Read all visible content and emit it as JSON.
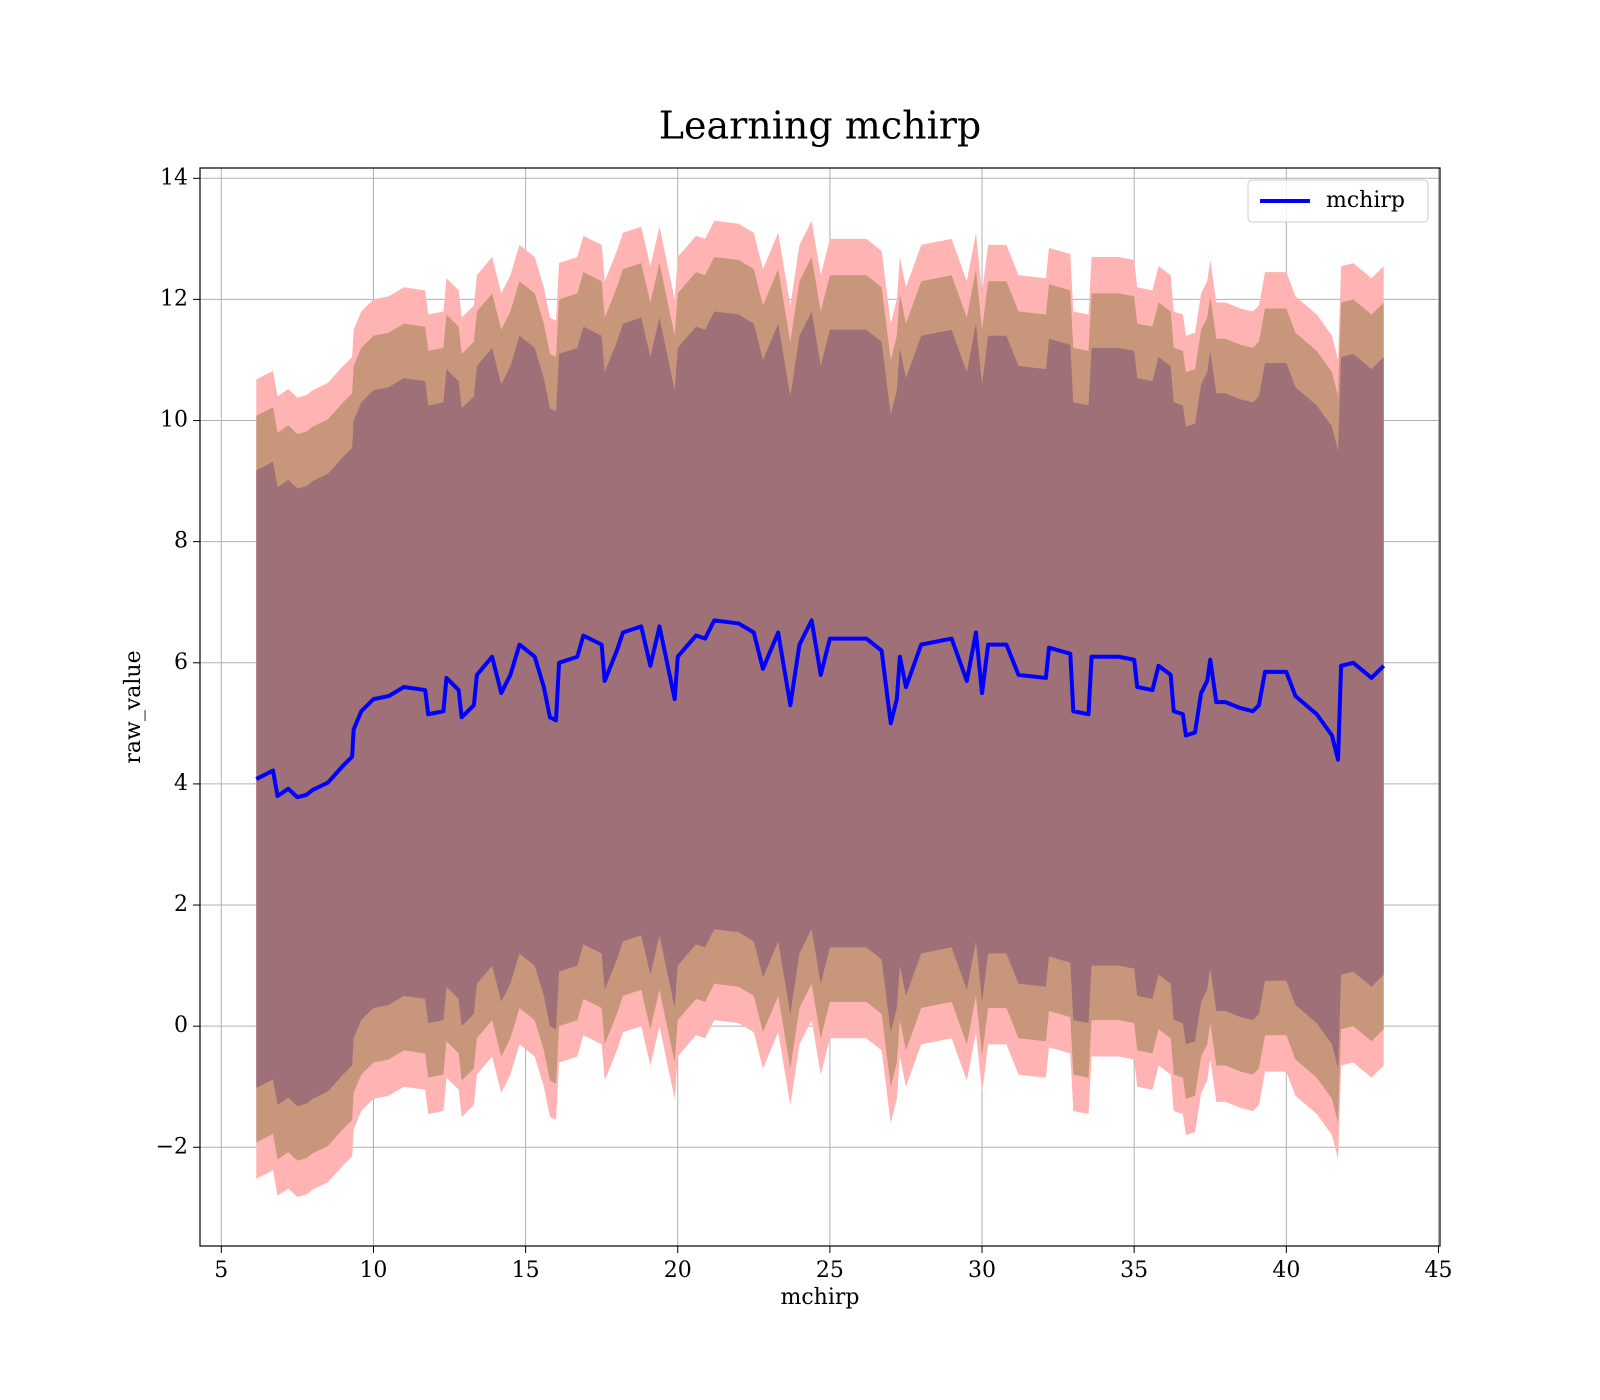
{
  "chart_data": {
    "type": "line",
    "title": "Learning mchirp",
    "x_label": "mchirp",
    "y_label": "raw_value",
    "xlim": [
      4.3,
      45.05
    ],
    "ylim": [
      -3.63,
      14.17
    ],
    "xticks": [
      5,
      10,
      15,
      20,
      25,
      30,
      35,
      40,
      45
    ],
    "yticks": [
      {
        "value": -2,
        "label": "−2"
      },
      0,
      2,
      4,
      6,
      8,
      10,
      12,
      14
    ],
    "grid": true,
    "legend": "upper right",
    "x": [
      6.15,
      6.7,
      6.85,
      7.2,
      7.5,
      7.8,
      8.0,
      8.5,
      9.0,
      9.3,
      9.35,
      9.6,
      10.0,
      10.5,
      11.0,
      11.7,
      11.8,
      12.3,
      12.4,
      12.8,
      12.9,
      13.3,
      13.4,
      13.9,
      14.2,
      14.5,
      14.8,
      15.3,
      15.6,
      15.8,
      16.0,
      16.1,
      16.7,
      16.9,
      17.5,
      17.6,
      18.0,
      18.2,
      18.8,
      19.1,
      19.4,
      19.9,
      20.0,
      20.6,
      20.9,
      21.2,
      22.0,
      22.5,
      22.8,
      23.3,
      23.7,
      24.0,
      24.4,
      24.7,
      25.0,
      25.6,
      26.2,
      26.7,
      27.0,
      27.2,
      27.3,
      27.5,
      28.0,
      29.0,
      29.5,
      29.8,
      30.0,
      30.2,
      30.8,
      31.2,
      32.1,
      32.2,
      32.9,
      33.0,
      33.5,
      33.6,
      34.5,
      35.0,
      35.1,
      35.6,
      35.8,
      36.2,
      36.3,
      36.6,
      36.7,
      37.0,
      37.2,
      37.4,
      37.5,
      37.7,
      38.0,
      38.5,
      38.9,
      39.1,
      39.3,
      40.0,
      40.3,
      41.0,
      41.5,
      41.7,
      41.8,
      42.2,
      42.8,
      43.2
    ],
    "bands": [
      {
        "color": "#ffb3b3",
        "upper": [
          10.68,
          10.82,
          10.4,
          10.52,
          10.38,
          10.42,
          10.5,
          10.62,
          10.9,
          11.05,
          11.5,
          11.8,
          12.0,
          12.05,
          12.2,
          12.15,
          11.75,
          11.8,
          12.35,
          12.15,
          11.7,
          11.9,
          12.4,
          12.7,
          12.1,
          12.4,
          12.9,
          12.7,
          12.2,
          11.7,
          11.65,
          12.6,
          12.7,
          13.05,
          12.9,
          12.3,
          12.8,
          13.1,
          13.2,
          12.55,
          13.2,
          12.0,
          12.7,
          13.05,
          13.0,
          13.3,
          13.25,
          13.1,
          12.5,
          13.1,
          11.9,
          12.9,
          13.3,
          12.4,
          13.0,
          13.0,
          13.0,
          12.8,
          11.6,
          12.0,
          12.7,
          12.2,
          12.9,
          13.0,
          12.3,
          13.1,
          12.1,
          12.9,
          12.9,
          12.4,
          12.35,
          12.85,
          12.75,
          11.8,
          11.75,
          12.7,
          12.7,
          12.65,
          12.2,
          12.15,
          12.55,
          12.4,
          11.8,
          11.75,
          11.4,
          11.45,
          12.1,
          12.3,
          12.65,
          11.95,
          11.95,
          11.85,
          11.8,
          11.9,
          12.45,
          12.45,
          12.05,
          11.75,
          11.4,
          11.0,
          12.55,
          12.6,
          12.35,
          12.55
        ],
        "lower": [
          -2.52,
          -2.38,
          -2.8,
          -2.68,
          -2.82,
          -2.78,
          -2.7,
          -2.58,
          -2.3,
          -2.15,
          -1.7,
          -1.4,
          -1.2,
          -1.15,
          -1.0,
          -1.05,
          -1.45,
          -1.4,
          -0.85,
          -1.05,
          -1.5,
          -1.3,
          -0.8,
          -0.5,
          -1.1,
          -0.8,
          -0.3,
          -0.5,
          -1.0,
          -1.5,
          -1.55,
          -0.6,
          -0.5,
          -0.15,
          -0.3,
          -0.9,
          -0.4,
          -0.1,
          0.0,
          -0.65,
          0.0,
          -1.2,
          -0.5,
          -0.15,
          -0.2,
          0.1,
          0.05,
          -0.1,
          -0.7,
          -0.1,
          -1.3,
          -0.3,
          0.1,
          -0.8,
          -0.2,
          -0.2,
          -0.2,
          -0.4,
          -1.6,
          -1.2,
          -0.5,
          -1.0,
          -0.3,
          -0.2,
          -0.9,
          -0.1,
          -1.1,
          -0.3,
          -0.3,
          -0.8,
          -0.85,
          -0.35,
          -0.45,
          -1.4,
          -1.45,
          -0.5,
          -0.5,
          -0.55,
          -1.0,
          -1.05,
          -0.65,
          -0.8,
          -1.4,
          -1.45,
          -1.8,
          -1.75,
          -1.1,
          -0.9,
          -0.55,
          -1.25,
          -1.25,
          -1.35,
          -1.4,
          -1.3,
          -0.75,
          -0.75,
          -1.15,
          -1.45,
          -1.8,
          -2.2,
          -0.65,
          -0.6,
          -0.85,
          -0.65
        ]
      },
      {
        "color": "#c8977b",
        "upper": [
          10.08,
          10.22,
          9.8,
          9.92,
          9.78,
          9.82,
          9.9,
          10.02,
          10.3,
          10.45,
          10.9,
          11.2,
          11.4,
          11.45,
          11.6,
          11.55,
          11.15,
          11.2,
          11.75,
          11.55,
          11.1,
          11.3,
          11.8,
          12.1,
          11.5,
          11.8,
          12.3,
          12.1,
          11.6,
          11.1,
          11.05,
          12.0,
          12.1,
          12.45,
          12.3,
          11.7,
          12.2,
          12.5,
          12.6,
          11.95,
          12.6,
          11.4,
          12.1,
          12.45,
          12.4,
          12.7,
          12.65,
          12.5,
          11.9,
          12.5,
          11.3,
          12.3,
          12.7,
          11.8,
          12.4,
          12.4,
          12.4,
          12.2,
          11.0,
          11.4,
          12.1,
          11.6,
          12.3,
          12.4,
          11.7,
          12.5,
          11.5,
          12.3,
          12.3,
          11.8,
          11.75,
          12.25,
          12.15,
          11.2,
          11.15,
          12.1,
          12.1,
          12.05,
          11.6,
          11.55,
          11.95,
          11.8,
          11.2,
          11.15,
          10.8,
          10.85,
          11.5,
          11.7,
          12.05,
          11.35,
          11.35,
          11.25,
          11.2,
          11.3,
          11.85,
          11.85,
          11.45,
          11.15,
          10.8,
          10.4,
          11.95,
          12.0,
          11.75,
          11.95
        ],
        "lower": [
          -1.92,
          -1.78,
          -2.2,
          -2.08,
          -2.22,
          -2.18,
          -2.1,
          -1.98,
          -1.7,
          -1.55,
          -1.1,
          -0.8,
          -0.6,
          -0.55,
          -0.4,
          -0.45,
          -0.85,
          -0.8,
          -0.25,
          -0.45,
          -0.9,
          -0.7,
          -0.2,
          0.1,
          -0.5,
          -0.2,
          0.3,
          0.1,
          -0.4,
          -0.9,
          -0.95,
          0.0,
          0.1,
          0.45,
          0.3,
          -0.3,
          0.2,
          0.5,
          0.6,
          -0.05,
          0.6,
          -0.6,
          0.1,
          0.45,
          0.4,
          0.7,
          0.65,
          0.5,
          -0.1,
          0.5,
          -0.7,
          0.3,
          0.7,
          -0.2,
          0.4,
          0.4,
          0.4,
          0.2,
          -1.0,
          -0.6,
          0.1,
          -0.4,
          0.3,
          0.4,
          -0.3,
          0.5,
          -0.5,
          0.3,
          0.3,
          -0.2,
          -0.25,
          0.25,
          0.15,
          -0.8,
          -0.85,
          0.1,
          0.1,
          0.05,
          -0.4,
          -0.45,
          -0.05,
          -0.2,
          -0.8,
          -0.85,
          -1.2,
          -1.15,
          -0.5,
          -0.3,
          0.05,
          -0.65,
          -0.65,
          -0.75,
          -0.8,
          -0.7,
          -0.15,
          -0.15,
          -0.55,
          -0.85,
          -1.2,
          -1.6,
          -0.05,
          0.0,
          -0.25,
          -0.05
        ]
      },
      {
        "color": "#a07078",
        "upper": [
          9.18,
          9.32,
          8.9,
          9.02,
          8.88,
          8.92,
          9.0,
          9.12,
          9.4,
          9.55,
          10.0,
          10.3,
          10.5,
          10.55,
          10.7,
          10.65,
          10.25,
          10.3,
          10.85,
          10.65,
          10.2,
          10.4,
          10.9,
          11.2,
          10.6,
          10.9,
          11.4,
          11.2,
          10.7,
          10.2,
          10.15,
          11.1,
          11.2,
          11.55,
          11.4,
          10.8,
          11.3,
          11.6,
          11.7,
          11.05,
          11.7,
          10.5,
          11.2,
          11.55,
          11.5,
          11.8,
          11.75,
          11.6,
          11.0,
          11.6,
          10.4,
          11.4,
          11.8,
          10.9,
          11.5,
          11.5,
          11.5,
          11.3,
          10.1,
          10.5,
          11.2,
          10.7,
          11.4,
          11.5,
          10.8,
          11.6,
          10.6,
          11.4,
          11.4,
          10.9,
          10.85,
          11.35,
          11.25,
          10.3,
          10.25,
          11.2,
          11.2,
          11.15,
          10.7,
          10.65,
          11.05,
          10.9,
          10.3,
          10.25,
          9.9,
          9.95,
          10.6,
          10.8,
          11.15,
          10.45,
          10.45,
          10.35,
          10.3,
          10.4,
          10.95,
          10.95,
          10.55,
          10.25,
          9.9,
          9.5,
          11.05,
          11.1,
          10.85,
          11.05
        ],
        "lower": [
          -1.02,
          -0.88,
          -1.3,
          -1.18,
          -1.32,
          -1.28,
          -1.2,
          -1.08,
          -0.8,
          -0.65,
          -0.2,
          0.1,
          0.3,
          0.35,
          0.5,
          0.45,
          0.05,
          0.1,
          0.65,
          0.45,
          0.0,
          0.2,
          0.7,
          1.0,
          0.4,
          0.7,
          1.2,
          1.0,
          0.5,
          0.0,
          -0.05,
          0.9,
          1.0,
          1.35,
          1.2,
          0.6,
          1.1,
          1.4,
          1.5,
          0.85,
          1.5,
          0.3,
          1.0,
          1.35,
          1.3,
          1.6,
          1.55,
          1.4,
          0.8,
          1.4,
          0.2,
          1.2,
          1.6,
          0.7,
          1.3,
          1.3,
          1.3,
          1.1,
          -0.1,
          0.3,
          1.0,
          0.5,
          1.2,
          1.3,
          0.6,
          1.4,
          0.4,
          1.2,
          1.2,
          0.7,
          0.65,
          1.15,
          1.05,
          0.1,
          0.05,
          1.0,
          1.0,
          0.95,
          0.5,
          0.45,
          0.85,
          0.7,
          0.1,
          0.05,
          -0.3,
          -0.25,
          0.4,
          0.6,
          0.95,
          0.25,
          0.25,
          0.15,
          0.1,
          0.2,
          0.75,
          0.75,
          0.35,
          0.05,
          -0.3,
          -0.7,
          0.85,
          0.9,
          0.65,
          0.85
        ]
      }
    ],
    "series": [
      {
        "name": "mchirp",
        "color": "#0000ff",
        "values": [
          4.08,
          4.22,
          3.8,
          3.92,
          3.78,
          3.82,
          3.9,
          4.02,
          4.3,
          4.45,
          4.9,
          5.2,
          5.4,
          5.45,
          5.6,
          5.55,
          5.15,
          5.2,
          5.75,
          5.55,
          5.1,
          5.3,
          5.8,
          6.1,
          5.5,
          5.8,
          6.3,
          6.1,
          5.6,
          5.1,
          5.05,
          6.0,
          6.1,
          6.45,
          6.3,
          5.7,
          6.2,
          6.5,
          6.6,
          5.95,
          6.6,
          5.4,
          6.1,
          6.45,
          6.4,
          6.7,
          6.65,
          6.5,
          5.9,
          6.5,
          5.3,
          6.3,
          6.7,
          5.8,
          6.4,
          6.4,
          6.4,
          6.2,
          5.0,
          5.4,
          6.1,
          5.6,
          6.3,
          6.4,
          5.7,
          6.5,
          5.5,
          6.3,
          6.3,
          5.8,
          5.75,
          6.25,
          6.15,
          5.2,
          5.15,
          6.1,
          6.1,
          6.05,
          5.6,
          5.55,
          5.95,
          5.8,
          5.2,
          5.15,
          4.8,
          4.85,
          5.5,
          5.7,
          6.05,
          5.35,
          5.35,
          5.25,
          5.2,
          5.3,
          5.85,
          5.85,
          5.45,
          5.15,
          4.8,
          4.4,
          5.95,
          6.0,
          5.75,
          5.95
        ]
      }
    ]
  }
}
